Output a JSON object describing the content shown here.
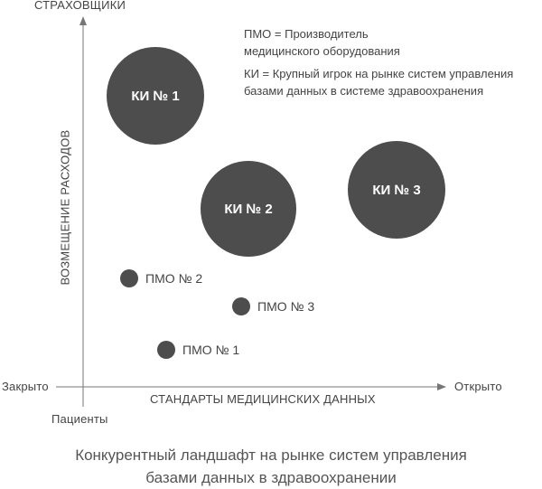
{
  "axes": {
    "y_top": "СТРАХОВЩИКИ",
    "y_label": "ВОЗМЕЩЕНИЕ РАСХОДОВ",
    "y_bottom": "Пациенты",
    "x_left": "Закрыто",
    "x_right": "Открыто",
    "x_label": "СТАНДАРТЫ МЕДИЦИНСКИХ ДАННЫХ"
  },
  "legend": {
    "pmo_line1": "ПМО = Производитель",
    "pmo_line2": "медицинского оборудования",
    "ki_line1": "КИ = Крупный игрок на рынке систем управления",
    "ki_line2": "базами данных в системе здравоохранения"
  },
  "bubbles": {
    "ki1": "КИ № 1",
    "ki2": "КИ № 2",
    "ki3": "КИ № 3"
  },
  "dots": {
    "pmo2": "ПМО № 2",
    "pmo3": "ПМО № 3",
    "pmo1": "ПМО № 1"
  },
  "caption": {
    "line1": "Конкурентный ландшафт на рынке систем управления",
    "line2": "базами данных в здравоохранении"
  }
}
